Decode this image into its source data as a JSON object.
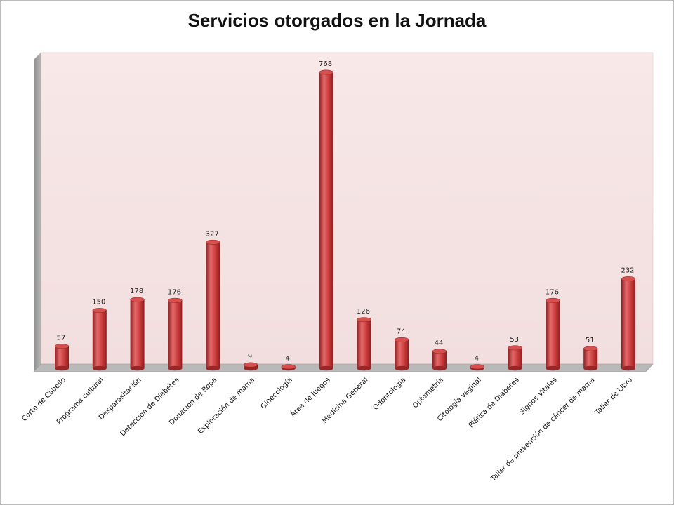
{
  "chart_data": {
    "type": "bar",
    "title": "Servicios otorgados en la Jornada",
    "xlabel": "",
    "ylabel": "",
    "ylim": [
      0,
      800
    ],
    "grid": false,
    "legend": "none",
    "colors": {
      "bar": "#c9393a",
      "bar_light": "#e46a6a",
      "bar_dark": "#8e1f20",
      "back_wall": "#f7e4e4",
      "side_wall": "#a9a9a9",
      "floor": "#b8b8b8"
    },
    "categories": [
      "Corte de Cabello",
      "Programa cultural",
      "Desparasitación",
      "Detección de Diabetes",
      "Donación de Ropa",
      "Exploración de mama",
      "Ginecología",
      "Área de juegos",
      "Medicina General",
      "Odontología",
      "Optometría",
      "Citología vaginal",
      "Plática de Diabetes",
      "Signos Vitales",
      "Taller de prevención de cáncer de mama",
      "Taller de Libro"
    ],
    "values": [
      57,
      150,
      178,
      176,
      327,
      9,
      4,
      768,
      126,
      74,
      44,
      4,
      53,
      176,
      51,
      232
    ]
  }
}
